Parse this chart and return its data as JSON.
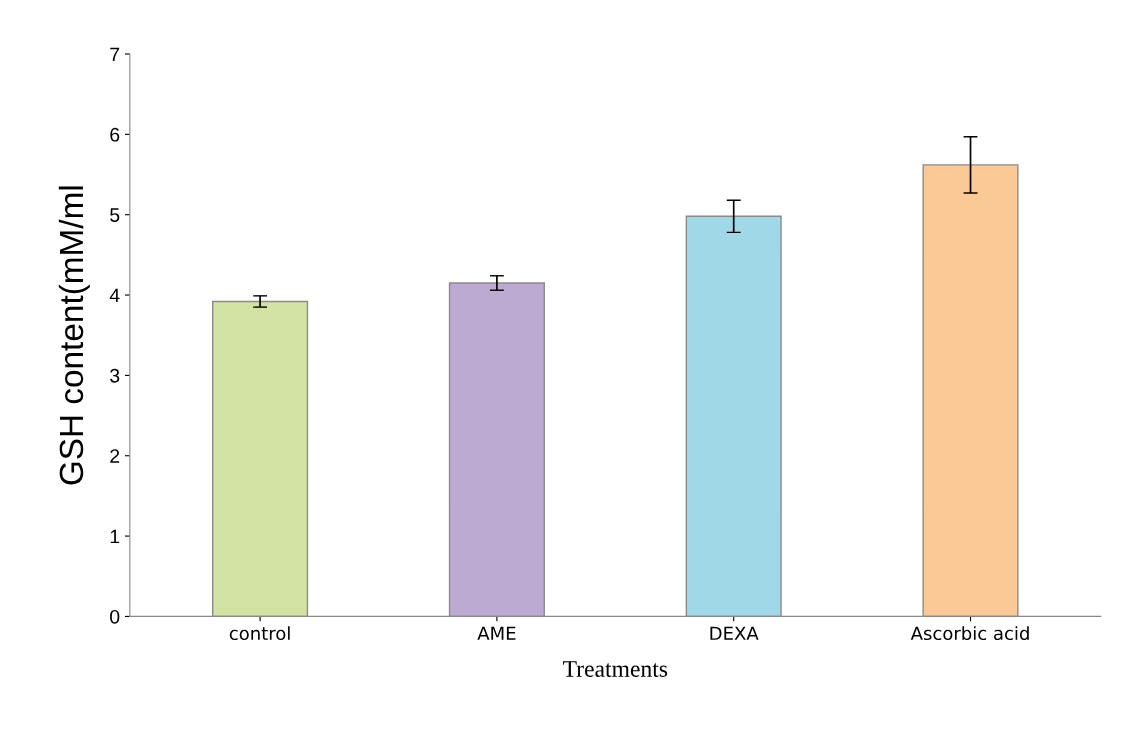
{
  "chart_data": {
    "type": "bar",
    "xlabel": "Treatments",
    "ylabel": "GSH content(mM/ml",
    "categories": [
      "control",
      "AME",
      "DEXA",
      "Ascorbic acid"
    ],
    "values": [
      3.92,
      4.15,
      4.98,
      5.62
    ],
    "errors": [
      0.07,
      0.09,
      0.2,
      0.35
    ],
    "colors": [
      "#d2e3a4",
      "#bcaad3",
      "#a0d8e8",
      "#fbc995"
    ],
    "ylim": [
      0,
      7
    ],
    "yticks": [
      0,
      1,
      2,
      3,
      4,
      5,
      6,
      7
    ],
    "grid": false,
    "legend": false
  }
}
